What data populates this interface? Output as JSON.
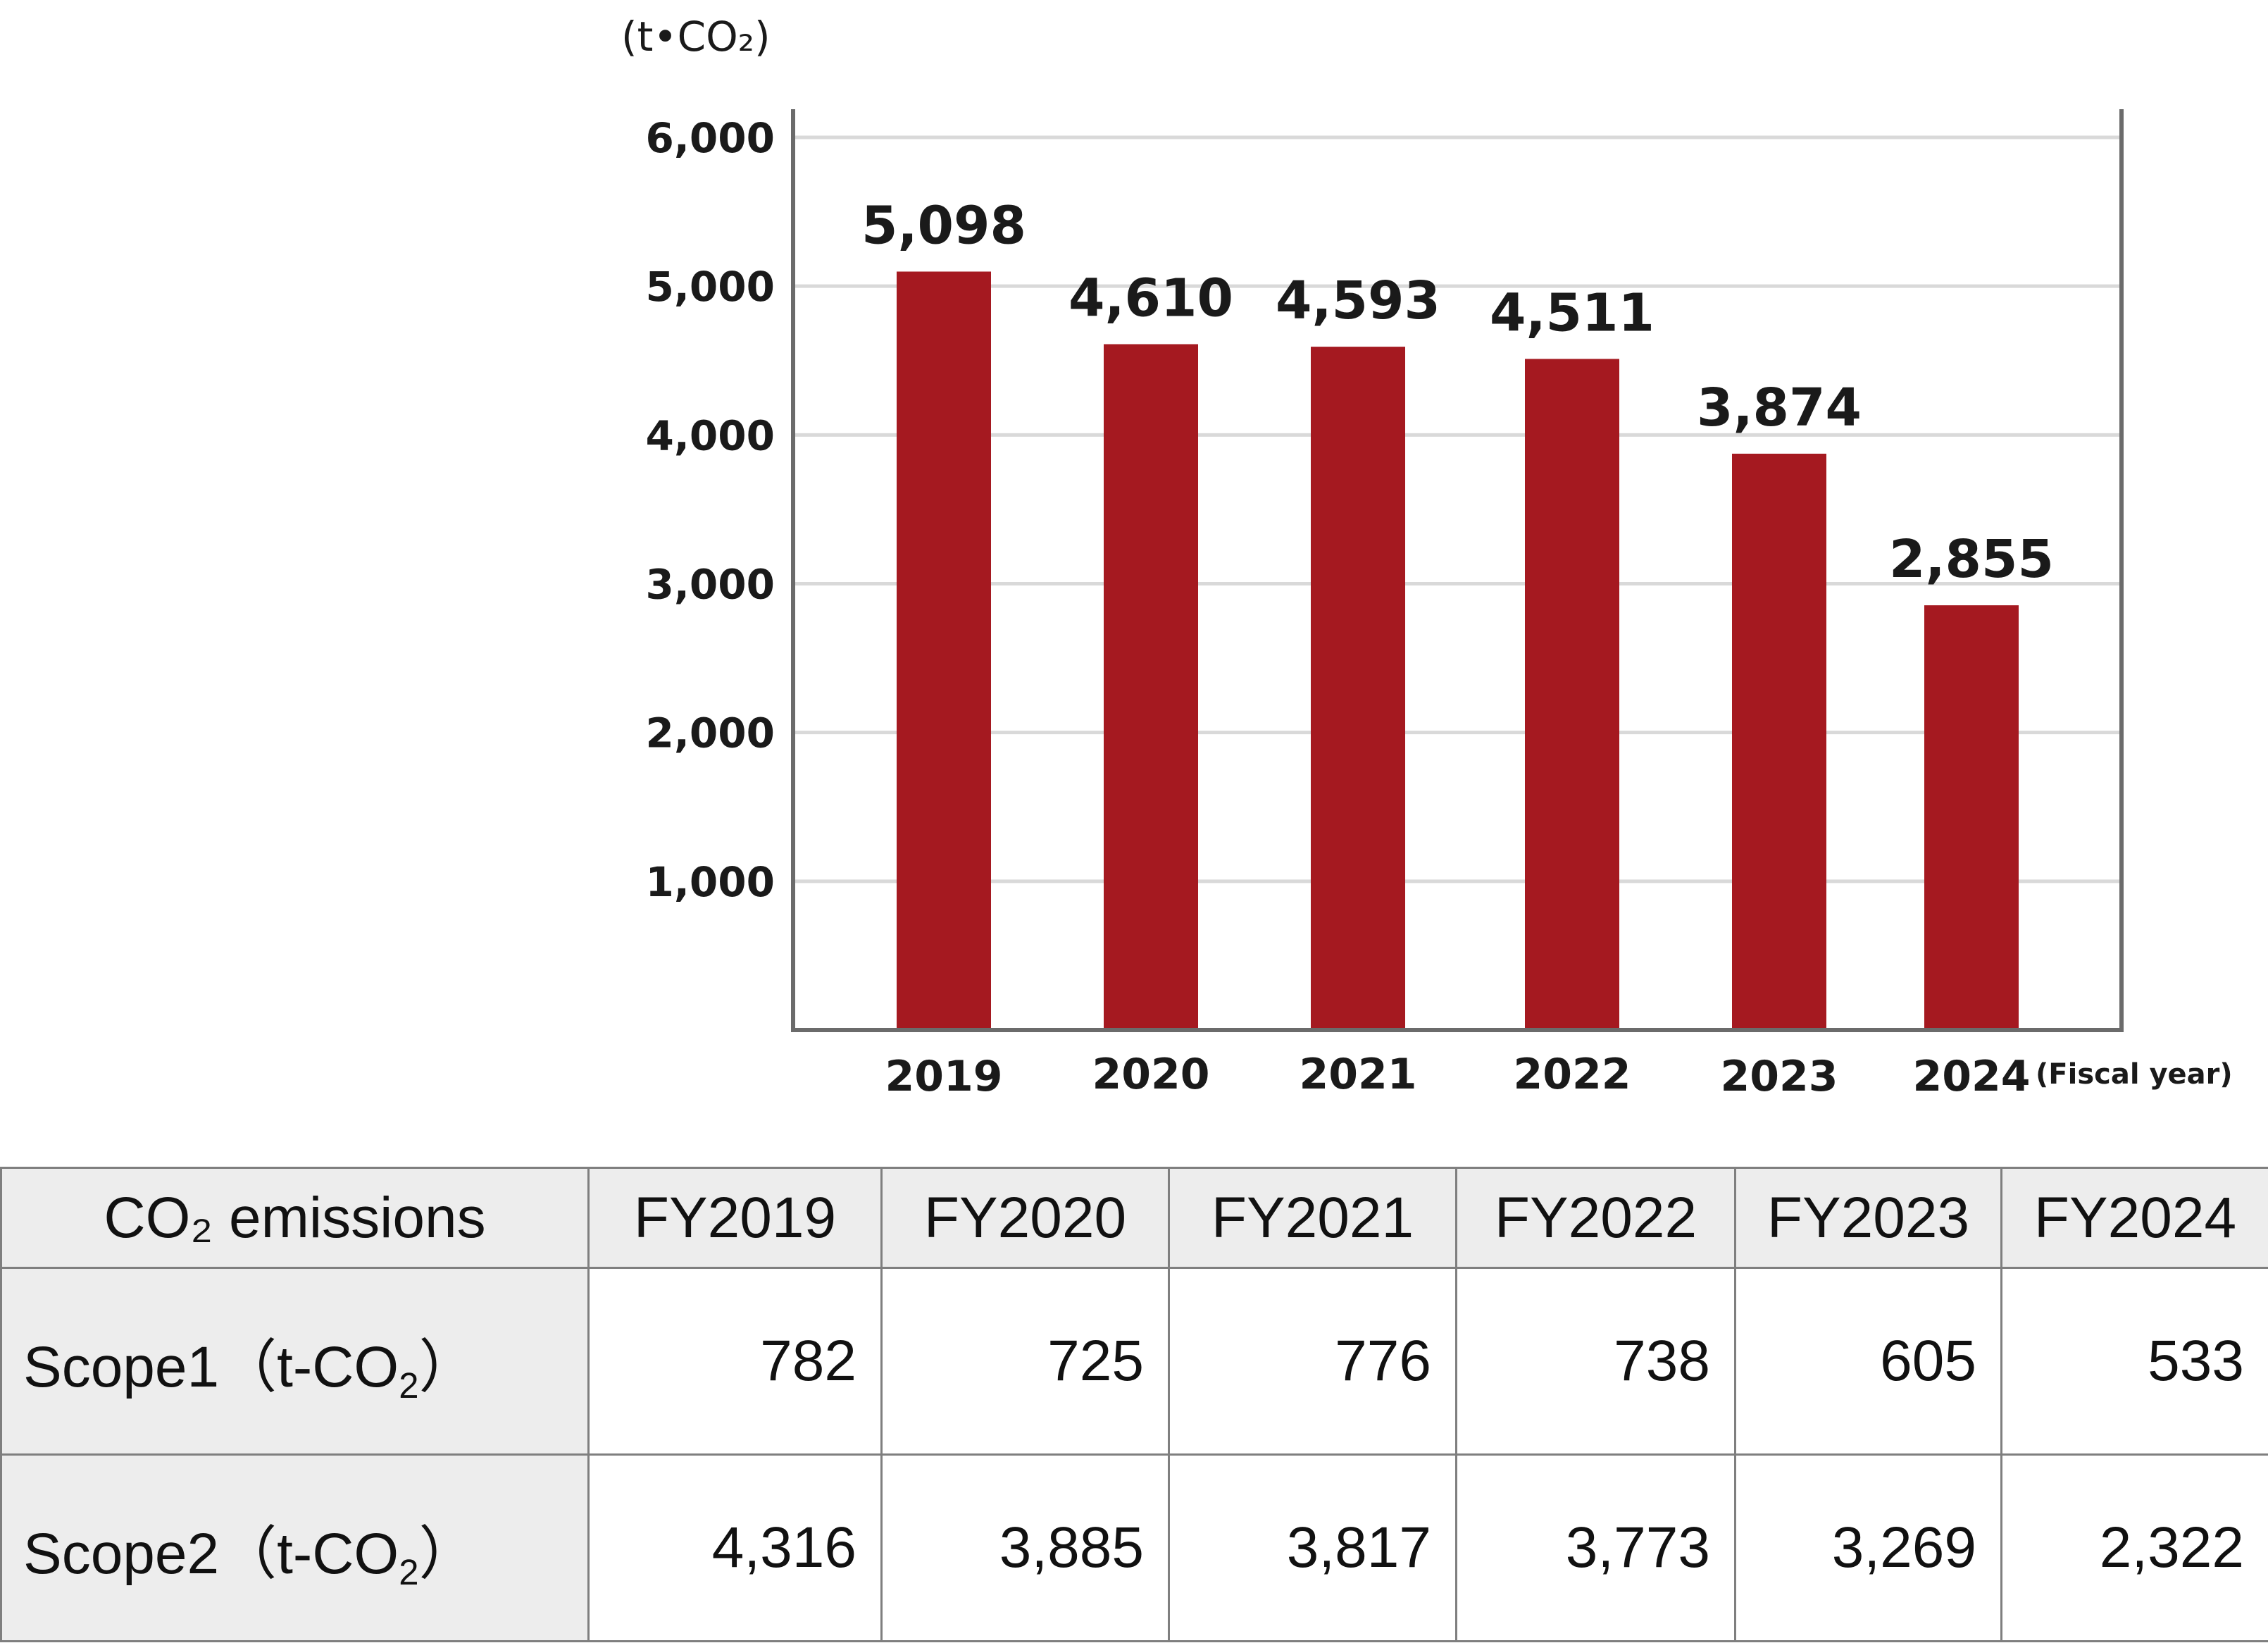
{
  "chart_data": {
    "type": "bar",
    "unit_label": "(t•CO₂)",
    "categories": [
      "2019",
      "2020",
      "2021",
      "2022",
      "2023",
      "2024"
    ],
    "values": [
      5098,
      4610,
      4593,
      4511,
      3874,
      2855
    ],
    "value_labels": [
      "5,098",
      "4,610",
      "4,593",
      "4,511",
      "3,874",
      "2,855"
    ],
    "y_ticks": [
      1000,
      2000,
      3000,
      4000,
      5000,
      6000
    ],
    "y_tick_labels": [
      "1,000",
      "2,000",
      "3,000",
      "4,000",
      "5,000",
      "6,000"
    ],
    "ylim": [
      0,
      6000
    ],
    "xlabel": "(Fiscal year)",
    "grid": true,
    "bar_color": "#a51920"
  },
  "table": {
    "header": {
      "corner": "CO₂ emissions",
      "years": [
        "FY2019",
        "FY2020",
        "FY2021",
        "FY2022",
        "FY2023",
        "FY2024"
      ]
    },
    "rows": [
      {
        "label": "Scope1",
        "unit_open": "（t-CO",
        "unit_sub": "2",
        "unit_close": "）",
        "values": [
          "782",
          "725",
          "776",
          "738",
          "605",
          "533"
        ]
      },
      {
        "label": "Scope2",
        "unit_open": "（t-CO",
        "unit_sub": "2",
        "unit_close": "）",
        "values": [
          "4,316",
          "3,885",
          "3,817",
          "3,773",
          "3,269",
          "2,322"
        ]
      }
    ]
  }
}
